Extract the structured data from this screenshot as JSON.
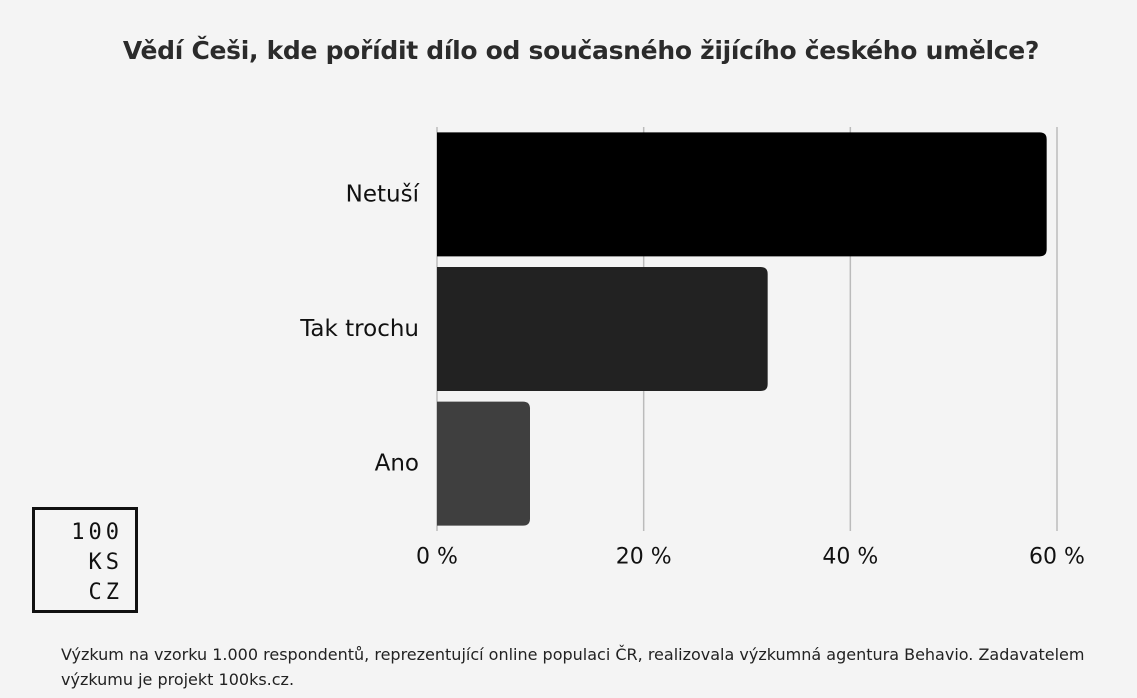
{
  "chart_data": {
    "type": "bar",
    "orientation": "horizontal",
    "title": "Vědí Češi, kde pořídit dílo od současného žijícího českého umělce?",
    "categories": [
      "Netuší",
      "Tak trochu",
      "Ano"
    ],
    "values": [
      59,
      32,
      9
    ],
    "xlim": [
      0,
      60
    ],
    "xticks": [
      0,
      20,
      40,
      60
    ],
    "xtick_labels": [
      "0 %",
      "20 %",
      "40 %",
      "60 %"
    ],
    "grid": true,
    "bar_colors": [
      "#000000",
      "#222222",
      "#3f3f3f"
    ],
    "grid_color": "#bbbbbb"
  },
  "logo": {
    "lines": [
      "100",
      "KS",
      "CZ"
    ]
  },
  "footnote": "Výzkum na vzorku 1.000 respondentů, reprezentující online populaci ČR, realizovala výzkumná agentura Behavio. Zadavatelem výzkumu je projekt 100ks.cz."
}
